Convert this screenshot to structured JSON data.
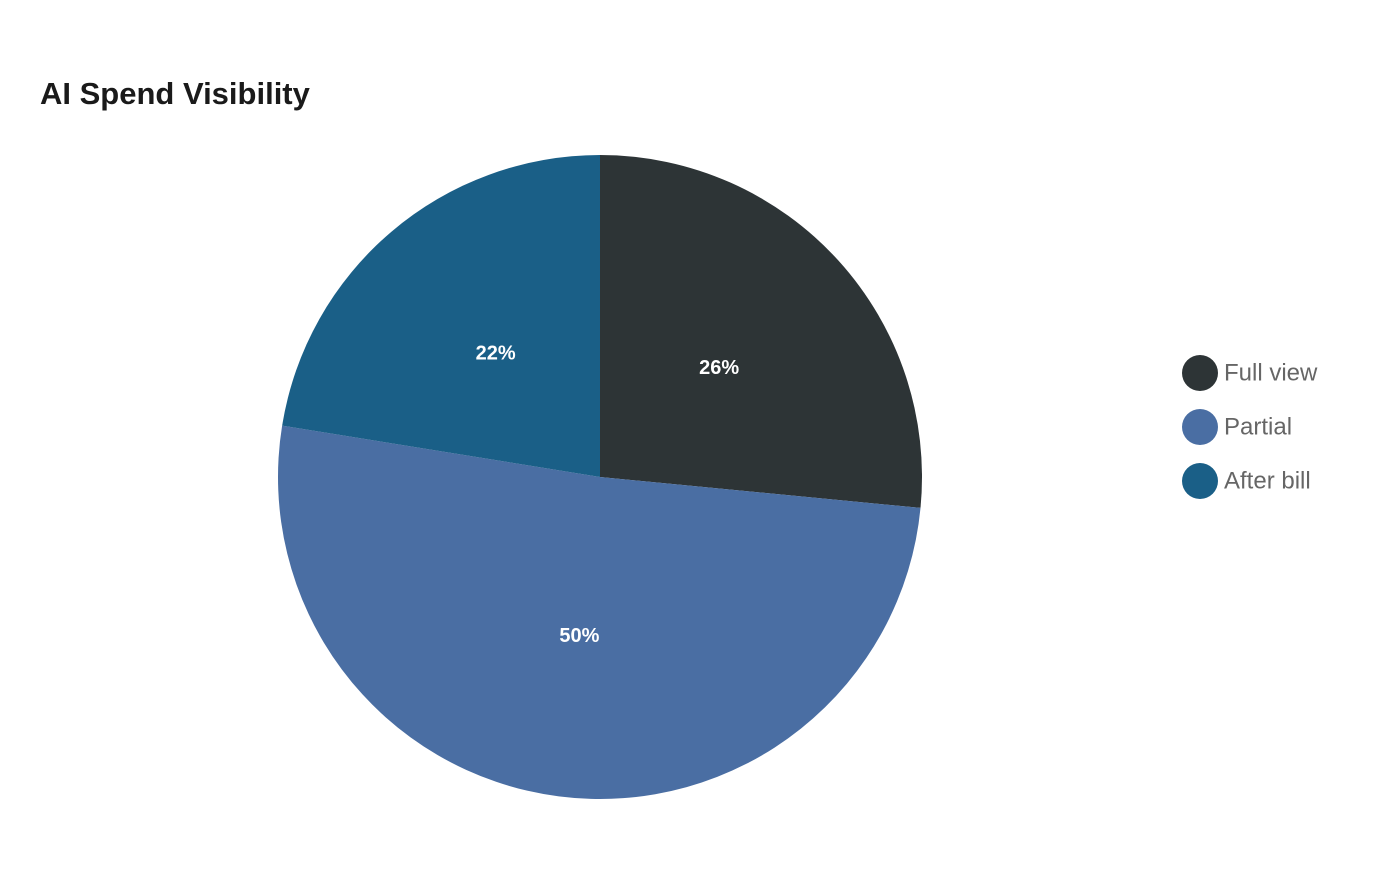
{
  "chart_data": {
    "type": "pie",
    "title": "AI Spend Visibility",
    "categories": [
      "Full view",
      "Partial",
      "After bill"
    ],
    "values": [
      26,
      50,
      22
    ],
    "value_labels": [
      "26%",
      "50%",
      "22%"
    ],
    "colors": [
      "#2d3436",
      "#4a6ea3",
      "#1a5f87"
    ],
    "legend": "right"
  }
}
